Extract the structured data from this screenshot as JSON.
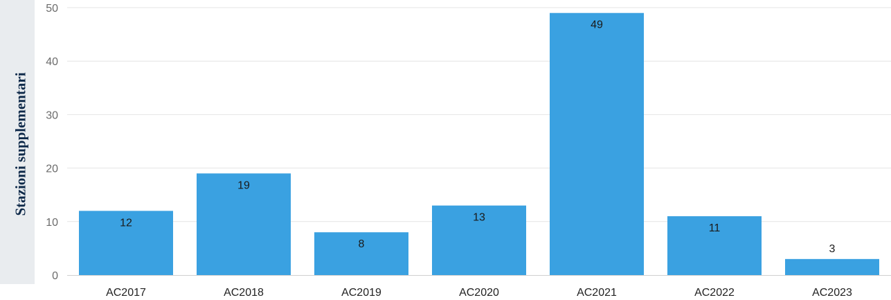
{
  "chart_data": {
    "type": "bar",
    "title": "",
    "xlabel": "",
    "ylabel": "Stazioni supplementari",
    "categories": [
      "AC2017",
      "AC2018",
      "AC2019",
      "AC2020",
      "AC2021",
      "AC2022",
      "AC2023"
    ],
    "values": [
      12,
      19,
      8,
      13,
      49,
      11,
      3
    ],
    "ylim": [
      0,
      50
    ],
    "yticks": [
      0,
      10,
      20,
      30,
      40,
      50
    ],
    "grid": true,
    "legend": "none",
    "colors": {
      "bar": "#3aa1e1",
      "grid": "#e4e4e4",
      "axis": "#cfcfcf"
    }
  }
}
